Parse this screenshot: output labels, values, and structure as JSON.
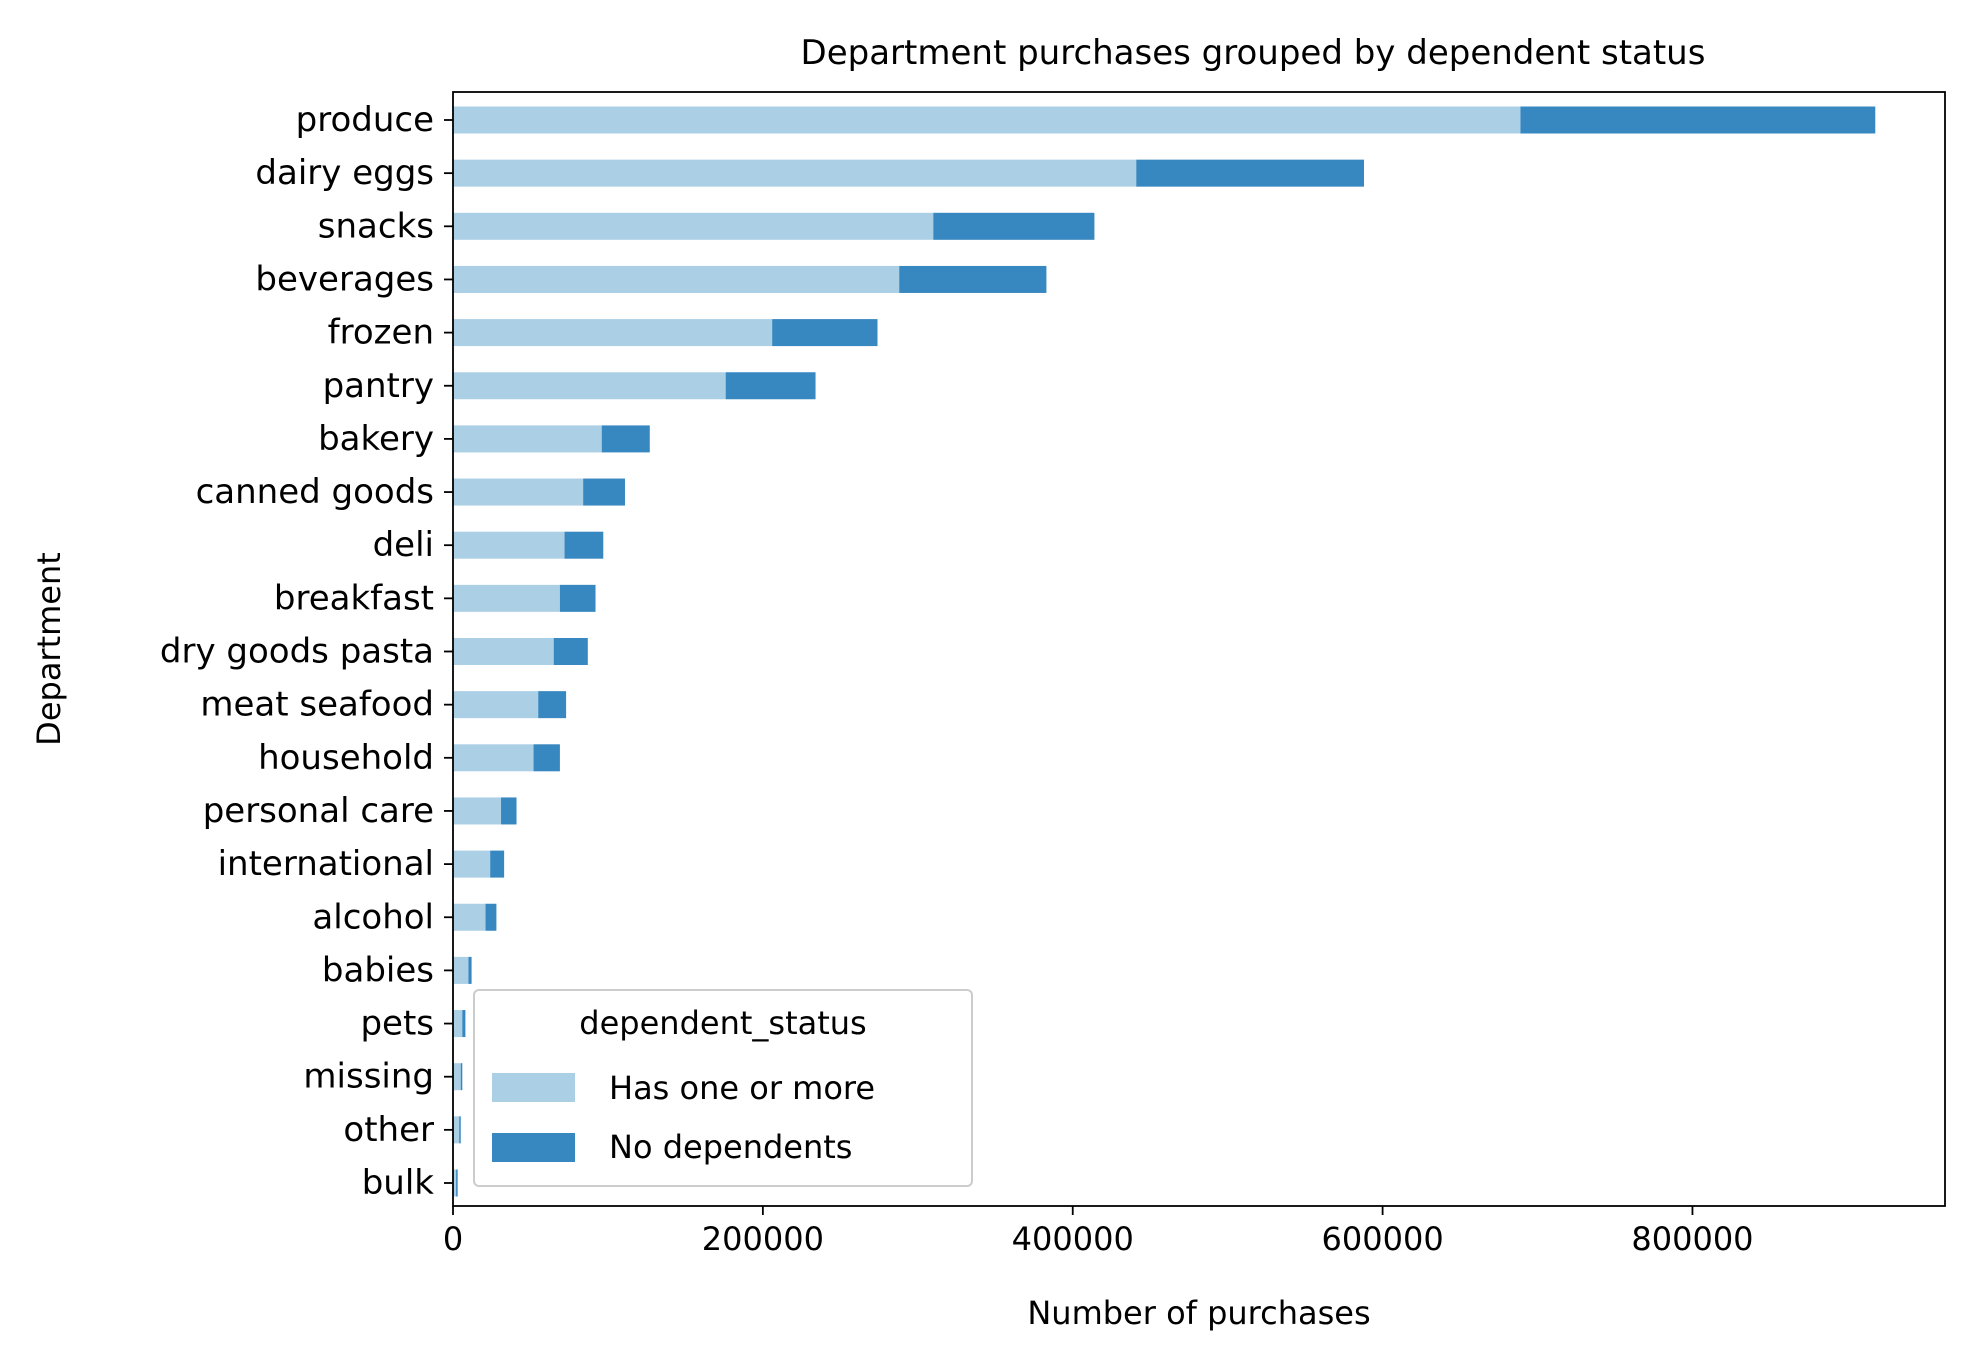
{
  "chart_data": {
    "type": "bar",
    "orientation": "horizontal",
    "stacked": true,
    "title": "Department purchases grouped by dependent status",
    "xlabel": "Number of purchases",
    "ylabel": "Department",
    "xlim": [
      0,
      963000
    ],
    "xticks": [
      0,
      200000,
      400000,
      600000,
      800000
    ],
    "xtick_labels": [
      "0",
      "200000",
      "400000",
      "600000",
      "800000"
    ],
    "grid": false,
    "categories": [
      "produce",
      "dairy eggs",
      "snacks",
      "beverages",
      "frozen",
      "pantry",
      "bakery",
      "canned goods",
      "deli",
      "breakfast",
      "dry goods pasta",
      "meat seafood",
      "household",
      "personal care",
      "international",
      "alcohol",
      "babies",
      "pets",
      "missing",
      "other",
      "bulk"
    ],
    "series": [
      {
        "name": "Has one or more",
        "color": "#abcfe5",
        "values": [
          689000,
          441000,
          310000,
          288000,
          206000,
          176000,
          96000,
          84000,
          72000,
          69000,
          65000,
          55000,
          52000,
          31000,
          24000,
          21000,
          10000,
          6000,
          5000,
          4000,
          2000
        ]
      },
      {
        "name": "No dependents",
        "color": "#3787c0",
        "values": [
          229000,
          147000,
          104000,
          95000,
          68000,
          58000,
          31000,
          27000,
          25000,
          23000,
          22000,
          18000,
          17000,
          10000,
          9000,
          7000,
          2000,
          2000,
          1000,
          1000,
          1000
        ]
      }
    ],
    "legend": {
      "title": "dependent_status",
      "placement": "lower-left"
    }
  }
}
